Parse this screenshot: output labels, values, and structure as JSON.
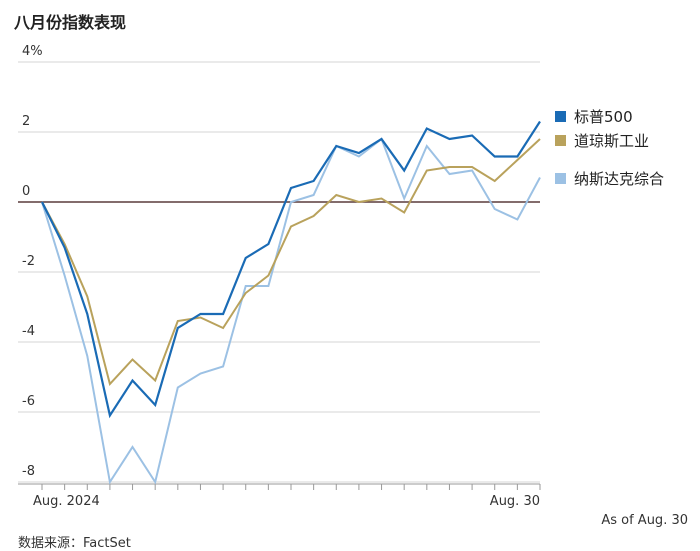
{
  "title": "八月份指数表现",
  "source": "数据来源：FactSet",
  "as_of": "As of Aug. 30",
  "colors": {
    "sp500": "#1a6bb5",
    "dow": "#b9a25c",
    "nasdaq": "#9cc1e4",
    "zero": "#5a3b3b",
    "grid": "#d6d6d6"
  },
  "chart_data": {
    "type": "line",
    "title": "八月份指数表现",
    "ylim": [
      -8,
      4
    ],
    "y_ticks": [
      "4%",
      "2",
      "0",
      "-2",
      "-4",
      "-6",
      "-8"
    ],
    "y_tick_values": [
      4,
      2,
      0,
      -2,
      -4,
      -6,
      -8
    ],
    "x_ticks": [
      "Aug. 2024",
      "Aug. 30"
    ],
    "grid": true,
    "legend": "right",
    "series": [
      {
        "name": "标普500",
        "values": [
          0,
          -1.3,
          -3.2,
          -6.1,
          -5.1,
          -5.8,
          -3.6,
          -3.2,
          -3.2,
          -1.6,
          -1.2,
          0.4,
          0.6,
          1.6,
          1.4,
          1.8,
          0.9,
          2.1,
          1.8,
          1.9,
          1.3,
          1.3,
          2.3
        ]
      },
      {
        "name": "道琼斯工业",
        "values": [
          0,
          -1.2,
          -2.7,
          -5.2,
          -4.5,
          -5.1,
          -3.4,
          -3.3,
          -3.6,
          -2.6,
          -2.1,
          -0.7,
          -0.4,
          0.2,
          0.0,
          0.1,
          -0.3,
          0.9,
          1.0,
          1.0,
          0.6,
          1.2,
          1.8
        ]
      },
      {
        "name": "纳斯达克综合",
        "values": [
          0,
          -2.1,
          -4.4,
          -8.0,
          -7.0,
          -8.0,
          -5.3,
          -4.9,
          -4.7,
          -2.4,
          -2.4,
          0.0,
          0.2,
          1.6,
          1.3,
          1.8,
          0.1,
          1.6,
          0.8,
          0.9,
          -0.2,
          -0.5,
          0.7
        ]
      }
    ]
  }
}
